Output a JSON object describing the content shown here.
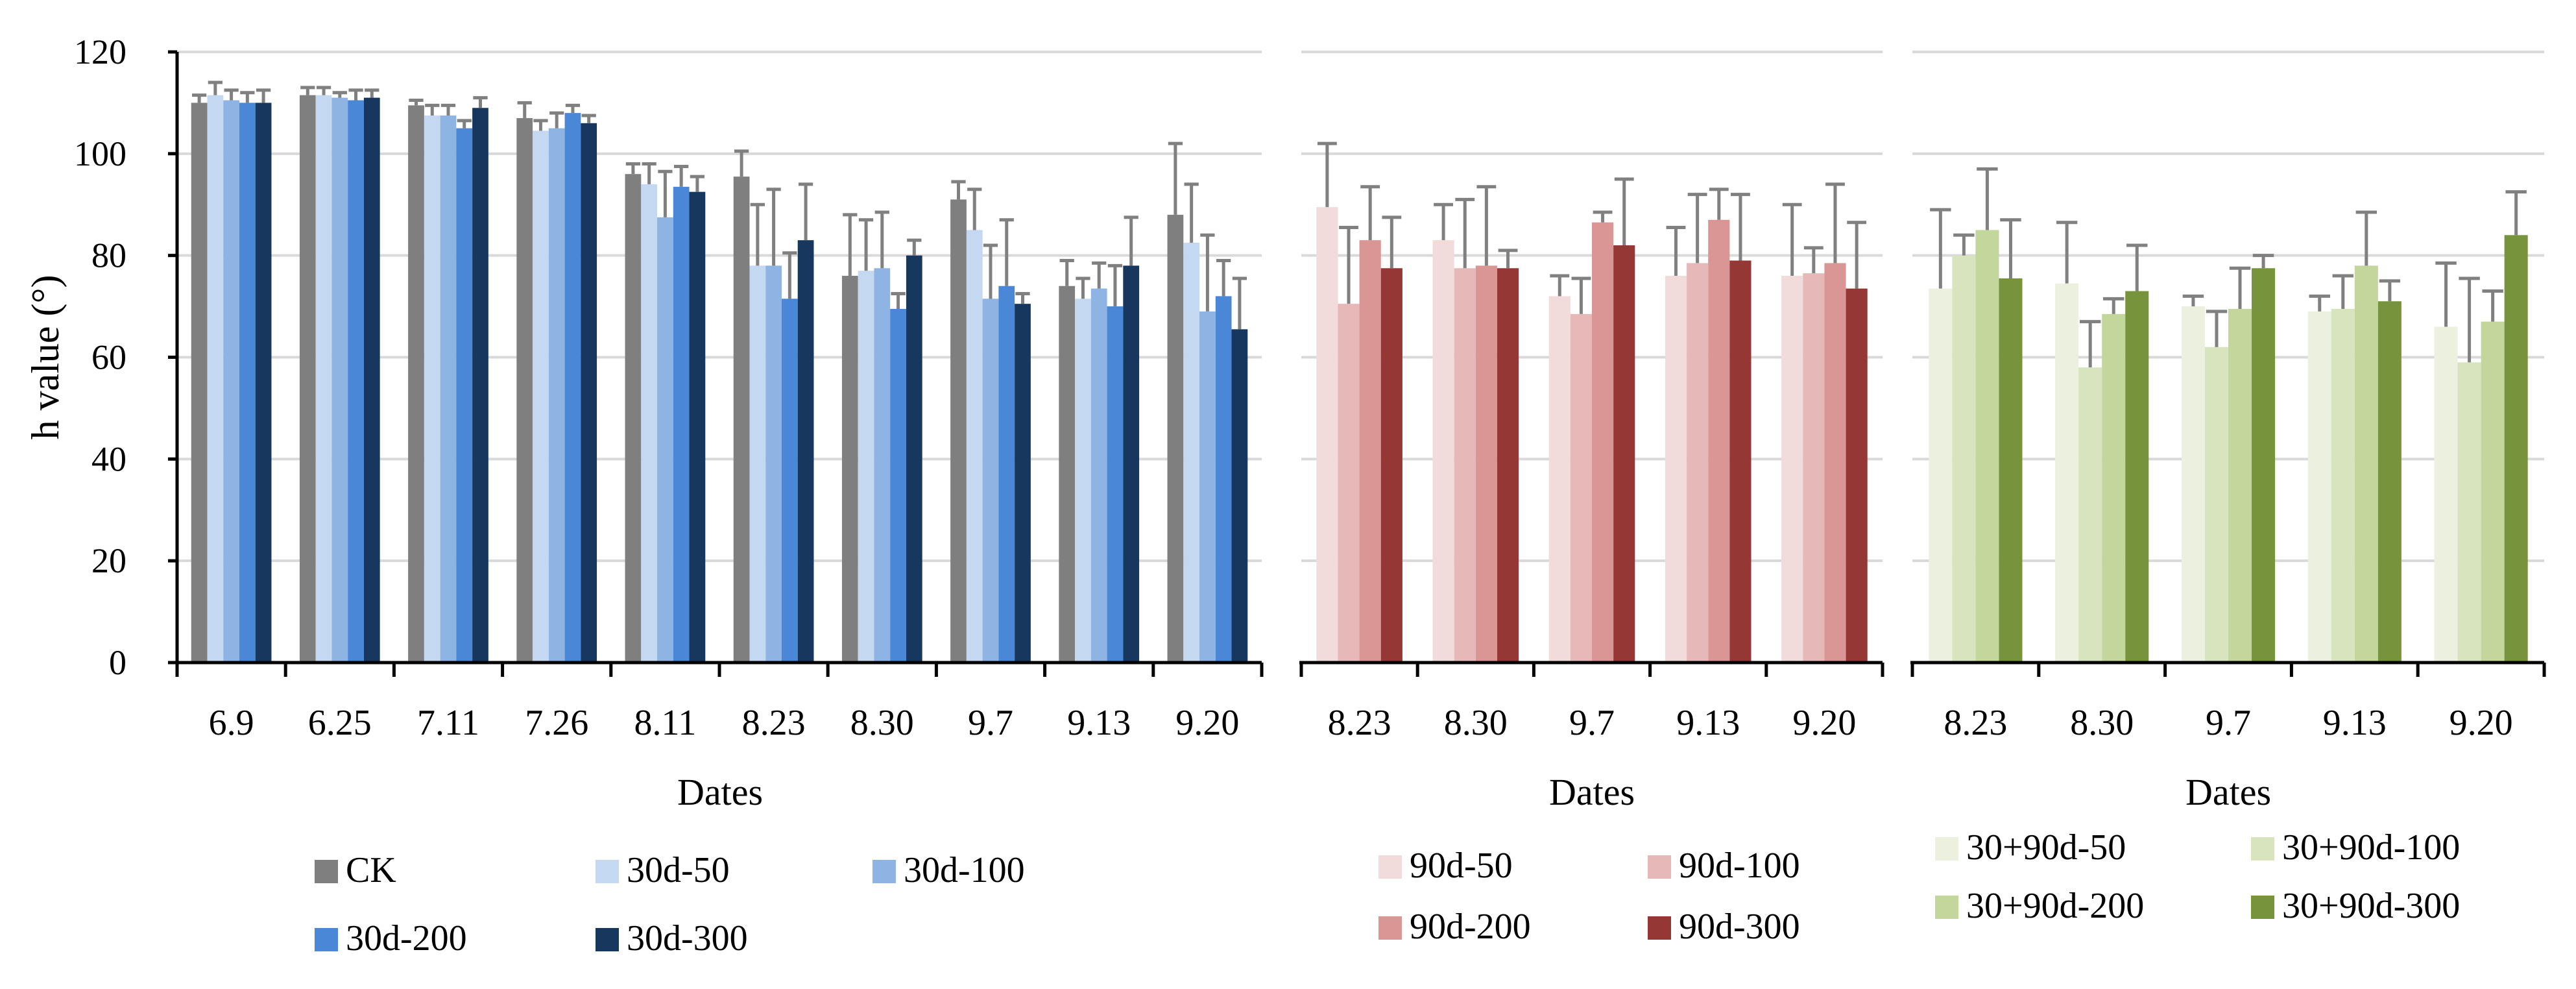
{
  "ylabel": "h value (°)",
  "ylim": [
    0,
    120
  ],
  "yticks": [
    "0",
    "20",
    "40",
    "60",
    "80",
    "100",
    "120"
  ],
  "colors": {
    "CK": "#7f7f7f",
    "30d-50": "#c5d8f1",
    "30d-100": "#8eb4e3",
    "30d-200": "#4a87d6",
    "30d-300": "#17375e",
    "90d-50": "#f2dcdb",
    "90d-100": "#e6b9b8",
    "90d-200": "#d99694",
    "90d-300": "#953735",
    "30+90d-50": "#ebf1de",
    "30+90d-100": "#d7e4bd",
    "30+90d-200": "#c3d69b",
    "30+90d-300": "#77933c",
    "error_bar": "#808080",
    "grid": "#d9d9d9"
  },
  "chart_data": [
    {
      "type": "bar",
      "xlabel": "Dates",
      "ylabel": "h value (°)",
      "ylim": [
        0,
        120
      ],
      "grid": true,
      "legend_position": "bottom",
      "categories": [
        "6.9",
        "6.25",
        "7.11",
        "7.26",
        "8.11",
        "8.23",
        "8.30",
        "9.7",
        "9.13",
        "9.20"
      ],
      "series": [
        {
          "name": "CK",
          "values": [
            110,
            111.5,
            109.5,
            107,
            96,
            95.5,
            76,
            91,
            74,
            88
          ],
          "errors": [
            1.5,
            1.5,
            1,
            3,
            2,
            5,
            12,
            3.5,
            5,
            14
          ]
        },
        {
          "name": "30d-50",
          "values": [
            111.5,
            111.5,
            107.5,
            104.5,
            94,
            78,
            77,
            85,
            71.5,
            82.5
          ],
          "errors": [
            2.5,
            1.5,
            2,
            2,
            4,
            12,
            10,
            8,
            4,
            11.5
          ]
        },
        {
          "name": "30d-100",
          "values": [
            110.5,
            111,
            107.5,
            105,
            87.5,
            78,
            77.5,
            71.5,
            73.5,
            69
          ],
          "errors": [
            2,
            1,
            2,
            3,
            9,
            15,
            11,
            10.5,
            5,
            15
          ]
        },
        {
          "name": "30d-200",
          "values": [
            110,
            110.5,
            105,
            108,
            93.5,
            71.5,
            69.5,
            74,
            70,
            72
          ],
          "errors": [
            2,
            2,
            1.5,
            1.5,
            4,
            9,
            3,
            13,
            8,
            7
          ]
        },
        {
          "name": "30d-300",
          "values": [
            110,
            111,
            109,
            106,
            92.5,
            83,
            80,
            70.5,
            78,
            65.5
          ],
          "errors": [
            2.5,
            1.5,
            2,
            1.5,
            3,
            11,
            3,
            2,
            9.5,
            10
          ]
        }
      ]
    },
    {
      "type": "bar",
      "xlabel": "Dates",
      "ylim": [
        0,
        120
      ],
      "grid": true,
      "legend_position": "bottom",
      "categories": [
        "8.23",
        "8.30",
        "9.7",
        "9.13",
        "9.20"
      ],
      "series": [
        {
          "name": "90d-50",
          "values": [
            89.5,
            83,
            72,
            76,
            76
          ],
          "errors": [
            12.5,
            7,
            4,
            9.5,
            14
          ]
        },
        {
          "name": "90d-100",
          "values": [
            70.5,
            77.5,
            68.5,
            78.5,
            76.5
          ],
          "errors": [
            15,
            13.5,
            7,
            13.5,
            5
          ]
        },
        {
          "name": "90d-200",
          "values": [
            83,
            78,
            86.5,
            87,
            78.5
          ],
          "errors": [
            10.5,
            15.5,
            2,
            6,
            15.5
          ]
        },
        {
          "name": "90d-300",
          "values": [
            77.5,
            77.5,
            82,
            79,
            73.5
          ],
          "errors": [
            10,
            3.5,
            13,
            13,
            13
          ]
        }
      ]
    },
    {
      "type": "bar",
      "xlabel": "Dates",
      "ylim": [
        0,
        120
      ],
      "grid": true,
      "legend_position": "bottom",
      "categories": [
        "8.23",
        "8.30",
        "9.7",
        "9.13",
        "9.20"
      ],
      "series": [
        {
          "name": "30+90d-50",
          "values": [
            73.5,
            74.5,
            70,
            69,
            66
          ],
          "errors": [
            15.5,
            12,
            2,
            3,
            12.5
          ]
        },
        {
          "name": "30+90d-100",
          "values": [
            80,
            58,
            62,
            69.5,
            59
          ],
          "errors": [
            4,
            9,
            7,
            6.5,
            16.5
          ]
        },
        {
          "name": "30+90d-200",
          "values": [
            85,
            68.5,
            69.5,
            78,
            67
          ],
          "errors": [
            12,
            3,
            8,
            10.5,
            6
          ]
        },
        {
          "name": "30+90d-300",
          "values": [
            75.5,
            73,
            77.5,
            71,
            84
          ],
          "errors": [
            11.5,
            9,
            2.5,
            4,
            8.5
          ]
        }
      ]
    }
  ]
}
